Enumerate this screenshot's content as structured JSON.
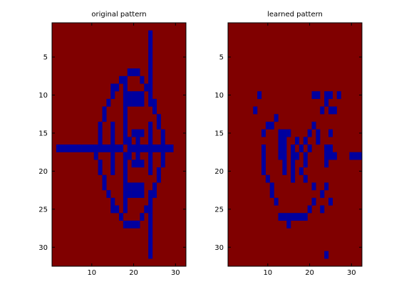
{
  "chart_data": [
    {
      "type": "heatmap",
      "title": "original pattern",
      "xlim": [
        0.5,
        32.5
      ],
      "ylim": [
        0.5,
        32.5
      ],
      "xticks": [
        10,
        20,
        30
      ],
      "yticks": [
        5,
        10,
        15,
        20,
        25,
        30
      ],
      "grid": false,
      "colors": {
        "background": "#800000",
        "foreground": "#00009f"
      },
      "rows": 32,
      "cols": 32,
      "blue_cells": {
        "2": [
          24
        ],
        "3": [
          24
        ],
        "4": [
          24
        ],
        "5": [
          24
        ],
        "6": [
          24
        ],
        "7": [
          19,
          20,
          21,
          24
        ],
        "8": [
          17,
          18,
          22,
          24
        ],
        "9": [
          15,
          16,
          18,
          23,
          24
        ],
        "10": [
          15,
          18,
          19,
          20,
          21,
          22,
          24
        ],
        "11": [
          14,
          18,
          19,
          20,
          21,
          22,
          24,
          25
        ],
        "12": [
          13,
          18,
          25
        ],
        "13": [
          13,
          18,
          26
        ],
        "14": [
          12,
          15,
          18,
          24,
          26
        ],
        "15": [
          12,
          15,
          18,
          20,
          21,
          22,
          24,
          27
        ],
        "16": [
          12,
          15,
          18,
          19,
          21,
          24,
          27
        ],
        "17": [
          2,
          3,
          4,
          5,
          6,
          7,
          8,
          9,
          10,
          11,
          12,
          13,
          14,
          15,
          16,
          17,
          19,
          20,
          21,
          22,
          23,
          24,
          25,
          26,
          27,
          28,
          29
        ],
        "18": [
          11,
          15,
          18,
          19,
          21,
          24,
          27
        ],
        "19": [
          12,
          15,
          18,
          20,
          21,
          22,
          24,
          27
        ],
        "20": [
          12,
          15,
          18,
          24,
          26
        ],
        "21": [
          13,
          18,
          26
        ],
        "22": [
          13,
          18,
          19,
          20,
          21,
          22,
          25
        ],
        "23": [
          14,
          18,
          19,
          20,
          21,
          22,
          24,
          25
        ],
        "24": [
          15,
          18,
          24
        ],
        "25": [
          15,
          16,
          18,
          23,
          24
        ],
        "26": [
          17,
          22,
          24
        ],
        "27": [
          18,
          19,
          20,
          21,
          24
        ],
        "28": [
          24
        ],
        "29": [
          24
        ],
        "30": [
          24
        ],
        "31": [
          24
        ]
      }
    },
    {
      "type": "heatmap",
      "title": "learned pattern",
      "xlim": [
        0.5,
        32.5
      ],
      "ylim": [
        0.5,
        32.5
      ],
      "xticks": [
        10,
        20,
        30
      ],
      "yticks": [
        5,
        10,
        15,
        20,
        25,
        30
      ],
      "grid": false,
      "colors": {
        "background": "#800000",
        "foreground": "#00009f"
      },
      "rows": 32,
      "cols": 32,
      "blue_cells": {
        "10": [
          8,
          21,
          22,
          24,
          25,
          27
        ],
        "11": [
          24
        ],
        "12": [
          7,
          23,
          25,
          26
        ],
        "13": [
          12
        ],
        "14": [
          10,
          11,
          21
        ],
        "15": [
          9,
          13,
          14,
          15,
          20,
          22,
          25
        ],
        "16": [
          13,
          14,
          17,
          19,
          22
        ],
        "17": [
          9,
          13,
          14,
          16,
          18,
          20,
          24,
          25
        ],
        "18": [
          9,
          13,
          14,
          16,
          17,
          19,
          24,
          25,
          26,
          30,
          31,
          32
        ],
        "19": [
          9,
          14,
          16,
          19,
          24
        ],
        "20": [
          9,
          14,
          16,
          18
        ],
        "21": [
          10,
          16,
          19
        ],
        "22": [
          11,
          21,
          24
        ],
        "23": [
          11,
          23
        ],
        "24": [
          12,
          21,
          25
        ],
        "25": [
          20,
          23
        ],
        "26": [
          13,
          14,
          15,
          16,
          17,
          18,
          19
        ],
        "27": [
          15
        ],
        "31": [
          24
        ]
      }
    }
  ]
}
